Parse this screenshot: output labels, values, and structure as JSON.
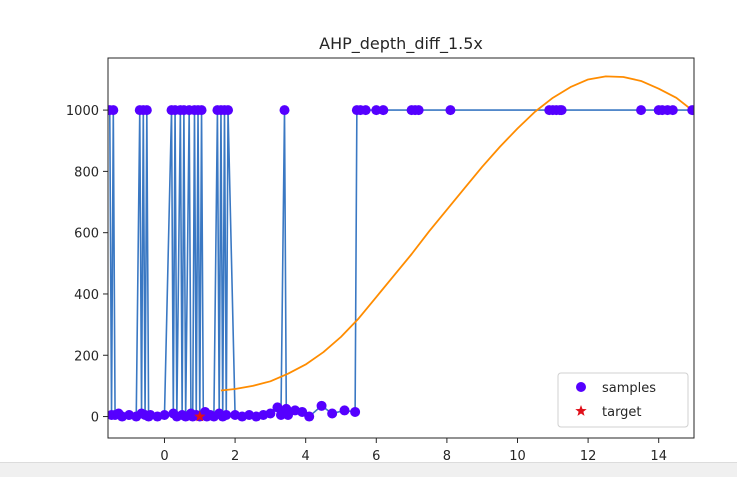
{
  "chart_data": {
    "type": "scatter",
    "title": "AHP_depth_diff_1.5x",
    "xlabel": "",
    "ylabel": "",
    "xlim": [
      -1.6,
      15.0
    ],
    "ylim": [
      -70,
      1170
    ],
    "xticks": [
      0,
      2,
      4,
      6,
      8,
      10,
      12,
      14
    ],
    "yticks": [
      0,
      200,
      400,
      600,
      800,
      1000
    ],
    "grid": false,
    "legend_position": "lower-right",
    "legend": [
      {
        "label": "samples",
        "marker": "circle",
        "color": "#5500ff"
      },
      {
        "label": "target",
        "marker": "star",
        "color": "#e0101a"
      }
    ],
    "series": [
      {
        "name": "samples",
        "mode": "markers+lines",
        "marker_color": "#5500ff",
        "line_color": "#3a78c3",
        "x": [
          -1.55,
          -1.5,
          -1.45,
          -1.4,
          -1.3,
          -1.2,
          -1.0,
          -0.8,
          -0.7,
          -0.65,
          -0.6,
          -0.55,
          -0.5,
          -0.45,
          -0.4,
          -0.2,
          0.0,
          0.2,
          0.25,
          0.3,
          0.35,
          0.45,
          0.5,
          0.55,
          0.6,
          0.7,
          0.75,
          0.8,
          0.85,
          0.9,
          0.95,
          1.0,
          1.05,
          1.1,
          1.15,
          1.2,
          1.3,
          1.4,
          1.5,
          1.55,
          1.6,
          1.65,
          1.7,
          1.75,
          1.8,
          2.0,
          2.2,
          2.4,
          2.6,
          2.8,
          3.0,
          3.2,
          3.3,
          3.4,
          3.45,
          3.5,
          3.7,
          3.9,
          4.1,
          4.45,
          4.75,
          5.1,
          5.4,
          5.45,
          5.55,
          5.7,
          6.0,
          6.2,
          7.0,
          7.1,
          7.2,
          8.1,
          10.9,
          11.0,
          11.1,
          11.2,
          11.25,
          13.5,
          14.0,
          14.1,
          14.25,
          14.4,
          14.95
        ],
        "y": [
          1000,
          5,
          1000,
          5,
          10,
          0,
          5,
          0,
          1000,
          10,
          1000,
          5,
          1000,
          0,
          5,
          0,
          5,
          1000,
          10,
          1000,
          0,
          1000,
          5,
          1000,
          0,
          1000,
          10,
          0,
          1000,
          5,
          1000,
          0,
          1000,
          5,
          15,
          0,
          5,
          0,
          1000,
          10,
          1000,
          0,
          1000,
          5,
          1000,
          5,
          0,
          5,
          0,
          5,
          10,
          30,
          5,
          1000,
          25,
          5,
          20,
          15,
          0,
          35,
          10,
          20,
          15,
          1000,
          1000,
          1000,
          1000,
          1000,
          1000,
          1000,
          1000,
          1000,
          1000,
          1000,
          1000,
          1000,
          1000,
          1000,
          1000,
          1000,
          1000,
          1000,
          1000
        ]
      },
      {
        "name": "fit",
        "mode": "line",
        "line_color": "#ff8c00",
        "x": [
          1.6,
          2.0,
          2.5,
          3.0,
          3.5,
          4.0,
          4.5,
          5.0,
          5.5,
          6.0,
          6.5,
          7.0,
          7.5,
          8.0,
          8.5,
          9.0,
          9.5,
          10.0,
          10.5,
          11.0,
          11.5,
          12.0,
          12.5,
          13.0,
          13.5,
          14.0,
          14.5,
          15.0
        ],
        "y": [
          85,
          90,
          100,
          115,
          140,
          170,
          210,
          260,
          320,
          390,
          460,
          530,
          605,
          675,
          745,
          815,
          880,
          940,
          995,
          1040,
          1075,
          1100,
          1110,
          1108,
          1095,
          1070,
          1040,
          995
        ]
      },
      {
        "name": "target",
        "mode": "markers",
        "marker": "star",
        "marker_color": "#e0101a",
        "x": [
          1.0
        ],
        "y": [
          0
        ]
      }
    ]
  }
}
